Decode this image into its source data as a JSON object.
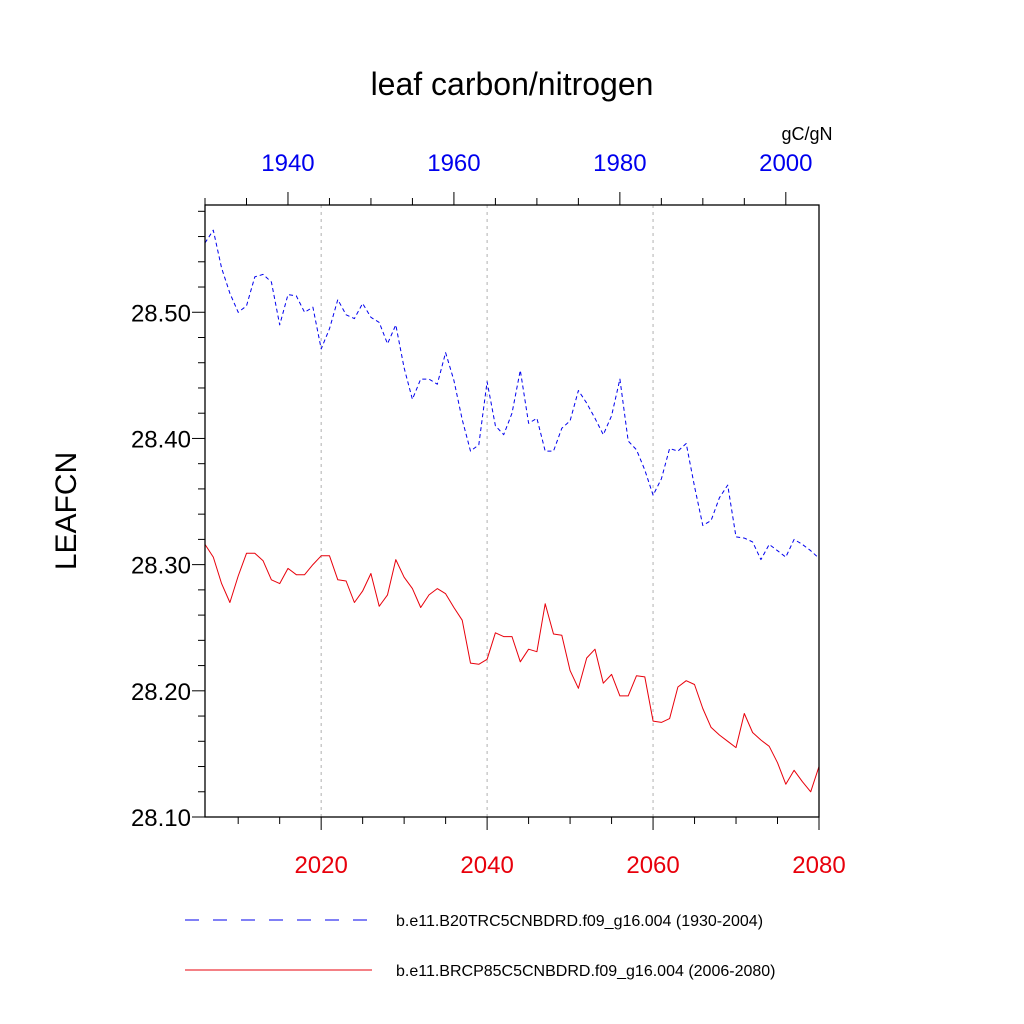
{
  "chart_data": {
    "type": "line",
    "title": "leaf carbon/nitrogen",
    "units": "gC/gN",
    "ylabel": "LEAFCN",
    "ylim": [
      28.1,
      28.585
    ],
    "yticks": [
      "28.10",
      "28.20",
      "28.30",
      "28.40",
      "28.50"
    ],
    "x_bottom": {
      "range": [
        2006,
        2080
      ],
      "ticks": [
        "2020",
        "2040",
        "2060",
        "2080"
      ],
      "color": "#e8000b"
    },
    "x_top": {
      "range": [
        1930,
        2004
      ],
      "ticks": [
        "1940",
        "1960",
        "1980",
        "2000"
      ],
      "color": "#0000ee"
    },
    "grid": "vertical dotted at major bottom ticks",
    "legend_placement": "bottom",
    "series": [
      {
        "name": "b.e11.B20TRC5CNBDRD.f09_g16.004 (1930-2004)",
        "axis": "top",
        "color": "#0000ee",
        "style": "dashed",
        "x_start": 1930,
        "values": [
          28.555,
          28.565,
          28.535,
          28.515,
          28.5,
          28.505,
          28.528,
          28.53,
          28.524,
          28.49,
          28.514,
          28.513,
          28.5,
          28.504,
          28.471,
          28.487,
          28.51,
          28.498,
          28.495,
          28.507,
          28.496,
          28.492,
          28.475,
          28.49,
          28.456,
          28.431,
          28.447,
          28.447,
          28.443,
          28.468,
          28.446,
          28.415,
          28.39,
          28.395,
          28.445,
          28.41,
          28.403,
          28.42,
          28.454,
          28.412,
          28.416,
          28.39,
          28.39,
          28.408,
          28.414,
          28.438,
          28.428,
          28.416,
          28.403,
          28.418,
          28.447,
          28.398,
          28.391,
          28.375,
          28.355,
          28.368,
          28.392,
          28.39,
          28.396,
          28.362,
          28.331,
          28.335,
          28.353,
          28.363,
          28.322,
          28.321,
          28.318,
          28.304,
          28.316,
          28.311,
          28.306,
          28.32,
          28.316,
          28.311,
          28.305
        ]
      },
      {
        "name": "b.e11.BRCP85C5CNBDRD.f09_g16.004 (2006-2080)",
        "axis": "bottom",
        "color": "#e8000b",
        "style": "solid",
        "x_start": 2006,
        "values": [
          28.316,
          28.306,
          28.285,
          28.27,
          28.291,
          28.309,
          28.309,
          28.303,
          28.288,
          28.285,
          28.297,
          28.292,
          28.292,
          28.3,
          28.307,
          28.307,
          28.288,
          28.287,
          28.27,
          28.279,
          28.293,
          28.267,
          28.276,
          28.304,
          28.29,
          28.281,
          28.266,
          28.276,
          28.281,
          28.277,
          28.266,
          28.256,
          28.222,
          28.221,
          28.225,
          28.246,
          28.243,
          28.243,
          28.223,
          28.233,
          28.231,
          28.269,
          28.245,
          28.244,
          28.216,
          28.202,
          28.226,
          28.233,
          28.206,
          28.213,
          28.196,
          28.196,
          28.212,
          28.211,
          28.176,
          28.175,
          28.178,
          28.203,
          28.208,
          28.205,
          28.186,
          28.171,
          28.165,
          28.16,
          28.155,
          28.182,
          28.167,
          28.161,
          28.156,
          28.143,
          28.126,
          28.137,
          28.128,
          28.12,
          28.14
        ]
      }
    ]
  }
}
